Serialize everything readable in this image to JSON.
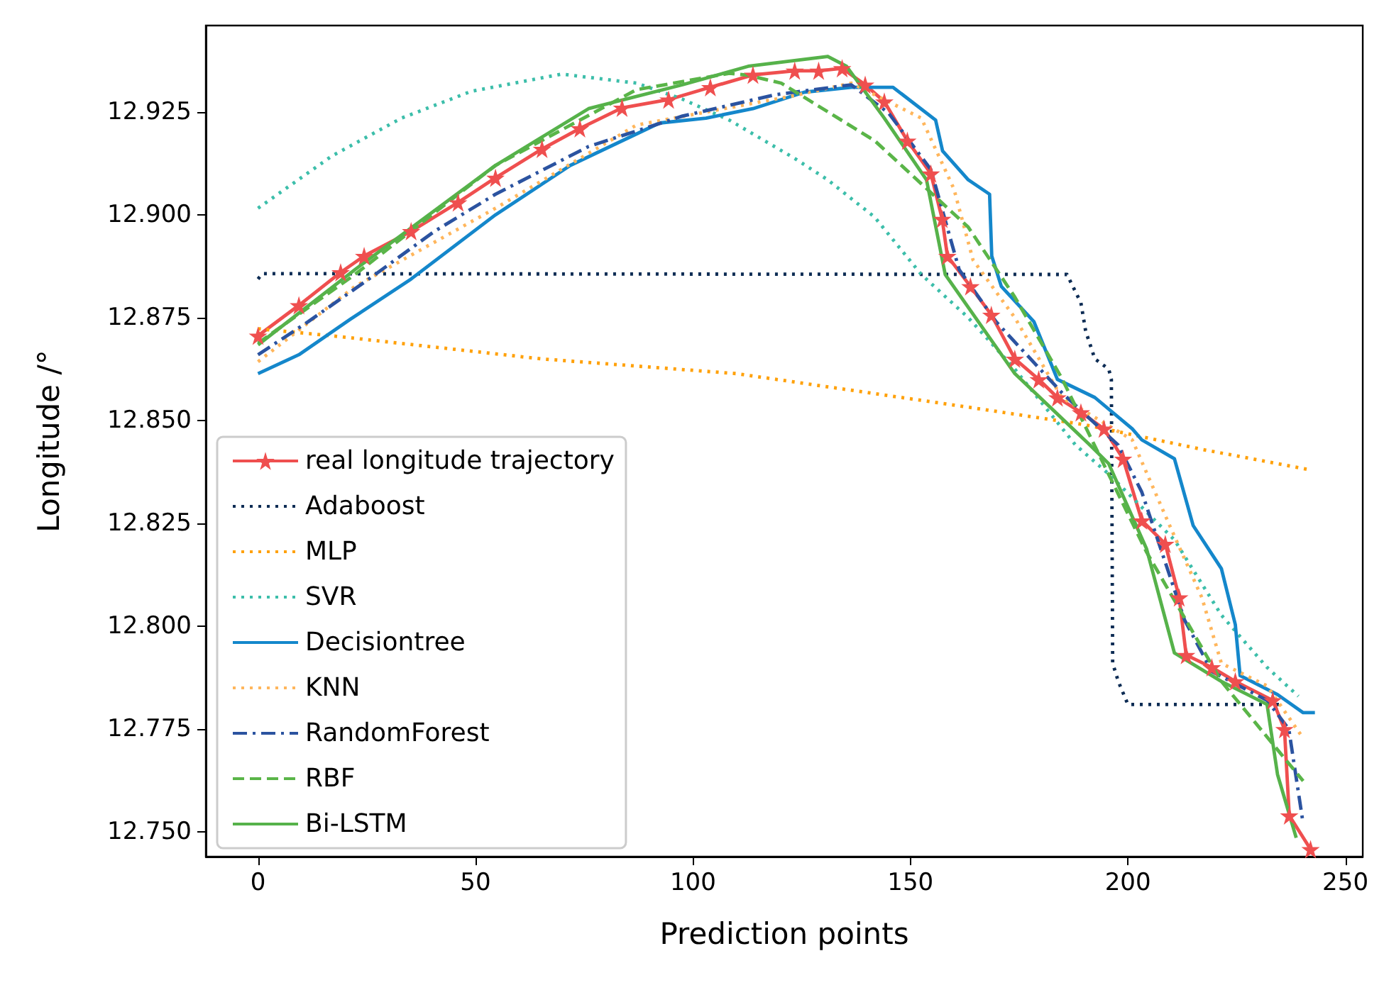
{
  "chart_data": {
    "type": "line",
    "xlabel": "Prediction points",
    "ylabel": "Longitude /°",
    "xlim": [
      -12,
      254
    ],
    "ylim": [
      12.744,
      12.946
    ],
    "xticks": [
      0,
      50,
      100,
      150,
      200,
      250
    ],
    "yticks": [
      {
        "value": 12.75,
        "label": "12.750"
      },
      {
        "value": 12.775,
        "label": "12.775"
      },
      {
        "value": 12.8,
        "label": "12.800"
      },
      {
        "value": 12.825,
        "label": "12.825"
      },
      {
        "value": 12.85,
        "label": "12.850"
      },
      {
        "value": 12.875,
        "label": "12.875"
      },
      {
        "value": 12.9,
        "label": "12.900"
      },
      {
        "value": 12.925,
        "label": "12.925"
      }
    ],
    "grid": false,
    "legend": "bottom left",
    "series": [
      {
        "name": "real longitude trajectory",
        "color": "#ef4f4f",
        "marker": "star",
        "line_style": "solid",
        "x": [
          0,
          9.4,
          19,
          24.4,
          35.2,
          46,
          54.6,
          65.3,
          74,
          83.7,
          94.4,
          104,
          113.8,
          123.4,
          128.9,
          134.3,
          139.6,
          144,
          149.3,
          154.7,
          157.3,
          158.5,
          163.8,
          168.6,
          174,
          179.5,
          183.8,
          189.2,
          194.5,
          198.9,
          203.2,
          208.6,
          211.8,
          213.4,
          219.3,
          224.7,
          233.3,
          236,
          237.1,
          242
        ],
        "values": [
          12.8706,
          12.878,
          12.886,
          12.89,
          12.896,
          12.903,
          12.909,
          12.916,
          12.921,
          12.926,
          12.928,
          12.931,
          12.934,
          12.935,
          12.935,
          12.9356,
          12.9316,
          12.9275,
          12.918,
          12.91,
          12.899,
          12.89,
          12.8826,
          12.8757,
          12.865,
          12.86,
          12.8556,
          12.852,
          12.848,
          12.8407,
          12.8257,
          12.82,
          12.807,
          12.793,
          12.79,
          12.7866,
          12.782,
          12.775,
          12.754,
          12.7458
        ]
      },
      {
        "name": "Adaboost",
        "color": "#0d2c54",
        "marker": "none",
        "line_style": "dotted",
        "x": [
          0,
          1,
          186,
          189.2,
          190.3,
          192.4,
          195.6,
          196.2,
          196.5,
          197.8,
          200,
          236
        ],
        "values": [
          12.8844,
          12.8857,
          12.8855,
          12.8786,
          12.8717,
          12.865,
          12.8625,
          12.86,
          12.791,
          12.7866,
          12.781,
          12.781
        ]
      },
      {
        "name": "MLP",
        "color": "#ffa10a",
        "marker": "none",
        "line_style": "dotted",
        "x": [
          0,
          17,
          65,
          110,
          163,
          190,
          217,
          242
        ],
        "values": [
          12.8723,
          12.8706,
          12.865,
          12.8614,
          12.8533,
          12.849,
          12.843,
          12.838
        ]
      },
      {
        "name": "SVR",
        "color": "#3cbeaa",
        "marker": "none",
        "line_style": "dotted",
        "x": [
          0,
          17,
          33,
          49,
          69.8,
          87,
          97.6,
          108.4,
          123.4,
          131,
          141.8,
          152.5,
          163.3,
          174,
          188,
          195.6,
          210.7,
          221.5,
          232,
          239.2
        ],
        "values": [
          12.9016,
          12.9143,
          12.9235,
          12.93,
          12.9342,
          12.932,
          12.9281,
          12.923,
          12.9137,
          12.9085,
          12.8994,
          12.8855,
          12.875,
          12.8625,
          12.844,
          12.837,
          12.821,
          12.8027,
          12.79,
          12.783
        ]
      },
      {
        "name": "Decisiontree",
        "color": "#1487cb",
        "marker": "none",
        "line_style": "solid",
        "x": [
          0,
          9.4,
          21.2,
          35.2,
          54.6,
          71.8,
          92.3,
          103,
          113.8,
          125.6,
          136.4,
          146,
          155.8,
          157.4,
          163.3,
          168.2,
          168.7,
          170.9,
          178.4,
          183.8,
          192.4,
          201,
          203.2,
          210.7,
          215,
          221.5,
          224.7,
          225.8,
          234.4,
          240.3,
          243
        ],
        "values": [
          12.8614,
          12.866,
          12.8746,
          12.8844,
          12.9,
          12.912,
          12.9223,
          12.9235,
          12.9258,
          12.9298,
          12.931,
          12.931,
          12.923,
          12.9155,
          12.9085,
          12.905,
          12.89,
          12.8826,
          12.874,
          12.86,
          12.8556,
          12.848,
          12.8453,
          12.8407,
          12.8245,
          12.814,
          12.8004,
          12.788,
          12.7834,
          12.779,
          12.779
        ]
      },
      {
        "name": "KNN",
        "color": "#ffb65c",
        "marker": "none",
        "line_style": "dotted",
        "x": [
          0,
          22.3,
          54.6,
          87,
          123.4,
          136.4,
          152.5,
          160,
          164.4,
          174,
          184.8,
          201,
          209.6,
          217,
          221.5,
          232,
          240.3
        ],
        "values": [
          12.8643,
          12.8826,
          12.9016,
          12.9218,
          12.929,
          12.932,
          12.9235,
          12.9063,
          12.889,
          12.875,
          12.8556,
          12.8453,
          12.8245,
          12.807,
          12.791,
          12.7855,
          12.7728
        ]
      },
      {
        "name": "RandomForest",
        "color": "#2b53a0",
        "marker": "none",
        "line_style": "dashdot",
        "x": [
          0,
          11.5,
          25.5,
          40.6,
          54.6,
          76,
          97.6,
          119,
          136.4,
          145,
          154.7,
          161.2,
          169.7,
          184.8,
          197.8,
          203.2,
          213,
          219.3,
          232,
          237,
          240.3
        ],
        "values": [
          12.866,
          12.874,
          12.8844,
          12.896,
          12.905,
          12.9166,
          12.924,
          12.9292,
          12.9316,
          12.9247,
          12.911,
          12.8867,
          12.874,
          12.8568,
          12.844,
          12.8326,
          12.8016,
          12.789,
          12.782,
          12.775,
          12.752
        ]
      },
      {
        "name": "RBF",
        "color": "#5ab548",
        "marker": "none",
        "line_style": "dashed",
        "x": [
          0,
          22.3,
          54.6,
          87,
          108.4,
          112.7,
          120.3,
          141.8,
          163.3,
          174,
          184.8,
          204.3,
          221.5,
          240.3
        ],
        "values": [
          12.8688,
          12.8855,
          12.912,
          12.9304,
          12.9344,
          12.9339,
          12.932,
          12.918,
          12.897,
          12.88,
          12.8603,
          12.818,
          12.7866,
          12.7624
        ]
      },
      {
        "name": "Bi-LSTM",
        "color": "#56b24a",
        "marker": "none",
        "line_style": "solid",
        "x": [
          0,
          22.3,
          54.6,
          76,
          97.6,
          112.7,
          131,
          135.3,
          144,
          153.7,
          158,
          174,
          191.3,
          195.6,
          204.3,
          210.7,
          221.5,
          232,
          234.4,
          238.7
        ],
        "values": [
          12.8684,
          12.8867,
          12.912,
          12.9258,
          12.9316,
          12.9361,
          12.9385,
          12.9361,
          12.9235,
          12.9085,
          12.8855,
          12.8614,
          12.844,
          12.8395,
          12.8188,
          12.7935,
          12.7866,
          12.781,
          12.764,
          12.7486
        ]
      }
    ]
  }
}
